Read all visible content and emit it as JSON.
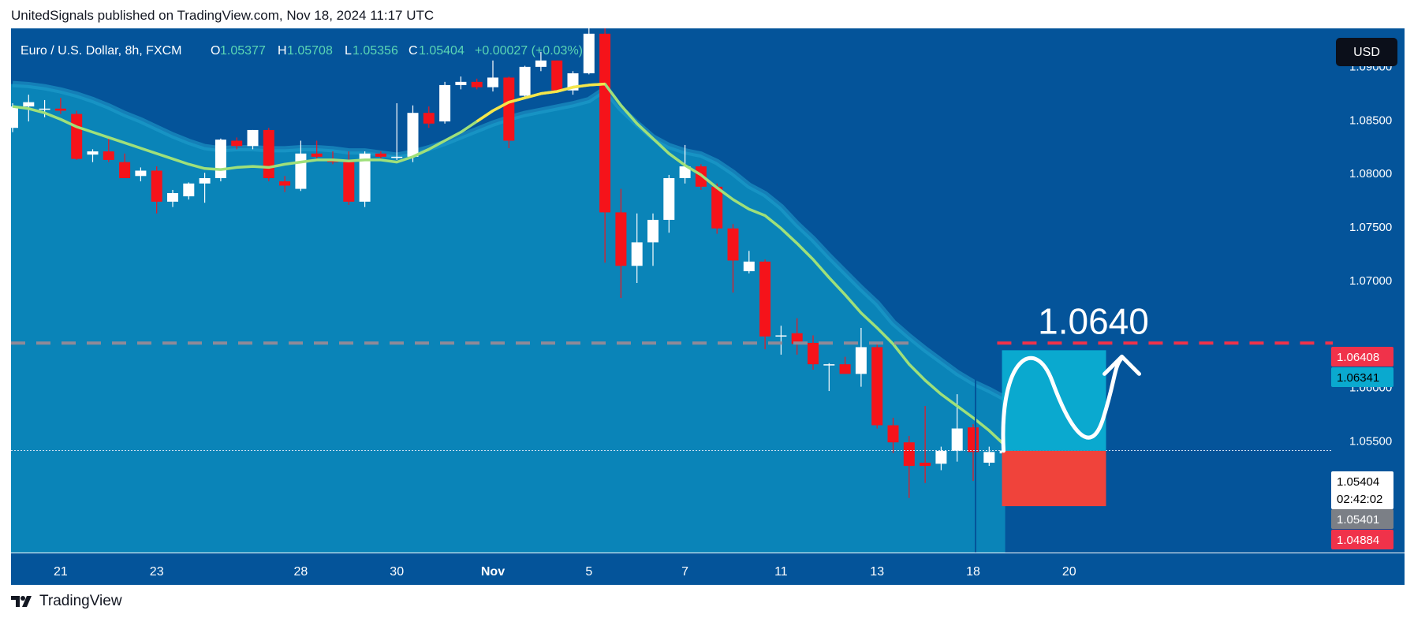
{
  "header": {
    "text": "UnitedSignals published on TradingView.com, Nov 18, 2024 11:17 UTC"
  },
  "legend": {
    "symbol": "Euro / U.S. Dollar, 8h, FXCM",
    "o_label": "O",
    "o": "1.05377",
    "h_label": "H",
    "h": "1.05708",
    "l_label": "L",
    "l": "1.05356",
    "c_label": "C",
    "c": "1.05404",
    "change": "+0.00027 (+0.03%)"
  },
  "currency_button": "USD",
  "footer": {
    "brand": "TradingView"
  },
  "colors": {
    "background": "#04549a",
    "ribbon_fill": "#0a84b8",
    "ribbon_edge": "#1f9ccc",
    "ma_line": "#9fe07a",
    "ma_highlight": "#f6e64a",
    "up_candle": "#ffffff",
    "down_candle": "#f5131a",
    "target_line": "#f0324a",
    "target_zone": "#0aa9cf",
    "stop_zone": "#f0433b",
    "text_on_chart": "#ffffff"
  },
  "annotation": {
    "target_text": "1.0640"
  },
  "price_badges": [
    {
      "text": "1.06408",
      "bg": "#f0324a",
      "fg": "#ffffff",
      "value": 1.06408
    },
    {
      "text": "1.06341",
      "bg": "#0aa9cf",
      "fg": "#000000",
      "value": 1.06341
    },
    {
      "text": "1.05404",
      "bg": "#ffffff",
      "fg": "#000000",
      "value": 1.05404,
      "sub": "02:42:02"
    },
    {
      "text": "1.05401",
      "bg": "#7b7f86",
      "fg": "#ffffff",
      "value": 1.05401
    },
    {
      "text": "1.04884",
      "bg": "#f0324a",
      "fg": "#ffffff",
      "value": 1.04884
    }
  ],
  "chart_data": {
    "type": "candlestick",
    "title": "Euro / U.S. Dollar, 8h, FXCM",
    "y_ticks": [
      "1.09000",
      "1.08500",
      "1.08000",
      "1.07500",
      "1.07000",
      "1.06000",
      "1.05500"
    ],
    "ylim": [
      1.0445,
      1.0935
    ],
    "x_tick_labels": [
      {
        "label": "21",
        "index": 3
      },
      {
        "label": "23",
        "index": 9
      },
      {
        "label": "28",
        "index": 18
      },
      {
        "label": "30",
        "index": 24
      },
      {
        "label": "Nov",
        "index": 30
      },
      {
        "label": "5",
        "index": 36
      },
      {
        "label": "7",
        "index": 42
      },
      {
        "label": "11",
        "index": 48
      },
      {
        "label": "13",
        "index": 54
      },
      {
        "label": "18",
        "index": 60
      },
      {
        "label": "20",
        "index": 66
      }
    ],
    "x_count": 72,
    "last_index": 60,
    "candles": [
      {
        "o": 1.0842,
        "h": 1.0865,
        "l": 1.0838,
        "c": 1.0862
      },
      {
        "o": 1.0862,
        "h": 1.0873,
        "l": 1.0848,
        "c": 1.0866
      },
      {
        "o": 1.086,
        "h": 1.0868,
        "l": 1.0852,
        "c": 1.086
      },
      {
        "o": 1.086,
        "h": 1.087,
        "l": 1.0855,
        "c": 1.0858
      },
      {
        "o": 1.0855,
        "h": 1.0858,
        "l": 1.0812,
        "c": 1.0813
      },
      {
        "o": 1.0817,
        "h": 1.0822,
        "l": 1.081,
        "c": 1.082
      },
      {
        "o": 1.082,
        "h": 1.0832,
        "l": 1.081,
        "c": 1.0812
      },
      {
        "o": 1.081,
        "h": 1.0818,
        "l": 1.0795,
        "c": 1.0795
      },
      {
        "o": 1.0797,
        "h": 1.0805,
        "l": 1.0792,
        "c": 1.0802
      },
      {
        "o": 1.0802,
        "h": 1.0806,
        "l": 1.0762,
        "c": 1.0773
      },
      {
        "o": 1.0773,
        "h": 1.0784,
        "l": 1.0768,
        "c": 1.0781
      },
      {
        "o": 1.0778,
        "h": 1.0791,
        "l": 1.0775,
        "c": 1.079
      },
      {
        "o": 1.079,
        "h": 1.08,
        "l": 1.0772,
        "c": 1.0795
      },
      {
        "o": 1.0795,
        "h": 1.0832,
        "l": 1.0792,
        "c": 1.0831
      },
      {
        "o": 1.083,
        "h": 1.0833,
        "l": 1.0822,
        "c": 1.0825
      },
      {
        "o": 1.0825,
        "h": 1.084,
        "l": 1.0822,
        "c": 1.084
      },
      {
        "o": 1.084,
        "h": 1.0842,
        "l": 1.0792,
        "c": 1.0795
      },
      {
        "o": 1.0792,
        "h": 1.0797,
        "l": 1.0782,
        "c": 1.0788
      },
      {
        "o": 1.0785,
        "h": 1.083,
        "l": 1.0783,
        "c": 1.0818
      },
      {
        "o": 1.0818,
        "h": 1.083,
        "l": 1.0812,
        "c": 1.0815
      },
      {
        "o": 1.0812,
        "h": 1.082,
        "l": 1.0808,
        "c": 1.081
      },
      {
        "o": 1.081,
        "h": 1.082,
        "l": 1.077,
        "c": 1.0773
      },
      {
        "o": 1.0773,
        "h": 1.082,
        "l": 1.0768,
        "c": 1.0818
      },
      {
        "o": 1.0818,
        "h": 1.082,
        "l": 1.0812,
        "c": 1.0815
      },
      {
        "o": 1.0815,
        "h": 1.0865,
        "l": 1.0812,
        "c": 1.0815
      },
      {
        "o": 1.0815,
        "h": 1.0863,
        "l": 1.081,
        "c": 1.0856
      },
      {
        "o": 1.0856,
        "h": 1.0862,
        "l": 1.0842,
        "c": 1.0846
      },
      {
        "o": 1.0848,
        "h": 1.0885,
        "l": 1.0846,
        "c": 1.0882
      },
      {
        "o": 1.0882,
        "h": 1.089,
        "l": 1.0878,
        "c": 1.0885
      },
      {
        "o": 1.0885,
        "h": 1.0888,
        "l": 1.0878,
        "c": 1.088
      },
      {
        "o": 1.088,
        "h": 1.0905,
        "l": 1.0876,
        "c": 1.0889
      },
      {
        "o": 1.0889,
        "h": 1.089,
        "l": 1.0823,
        "c": 1.083
      },
      {
        "o": 1.0872,
        "h": 1.09,
        "l": 1.087,
        "c": 1.0899
      },
      {
        "o": 1.0899,
        "h": 1.0913,
        "l": 1.0895,
        "c": 1.0905
      },
      {
        "o": 1.0905,
        "h": 1.0905,
        "l": 1.0875,
        "c": 1.0877
      },
      {
        "o": 1.0877,
        "h": 1.0895,
        "l": 1.0873,
        "c": 1.0893
      },
      {
        "o": 1.0893,
        "h": 1.0935,
        "l": 1.0892,
        "c": 1.093
      },
      {
        "o": 1.093,
        "h": 1.0935,
        "l": 1.0716,
        "c": 1.0763
      },
      {
        "o": 1.0763,
        "h": 1.0785,
        "l": 1.0683,
        "c": 1.0713
      },
      {
        "o": 1.0713,
        "h": 1.0762,
        "l": 1.0697,
        "c": 1.0735
      },
      {
        "o": 1.0735,
        "h": 1.0762,
        "l": 1.0713,
        "c": 1.0756
      },
      {
        "o": 1.0756,
        "h": 1.0798,
        "l": 1.0744,
        "c": 1.0795
      },
      {
        "o": 1.0795,
        "h": 1.0826,
        "l": 1.079,
        "c": 1.0806
      },
      {
        "o": 1.0806,
        "h": 1.0808,
        "l": 1.0784,
        "c": 1.0787
      },
      {
        "o": 1.0787,
        "h": 1.079,
        "l": 1.0743,
        "c": 1.0748
      },
      {
        "o": 1.0748,
        "h": 1.0752,
        "l": 1.0688,
        "c": 1.0718
      },
      {
        "o": 1.0708,
        "h": 1.0727,
        "l": 1.0706,
        "c": 1.0717
      },
      {
        "o": 1.0717,
        "h": 1.0719,
        "l": 1.0635,
        "c": 1.0647
      },
      {
        "o": 1.0647,
        "h": 1.0657,
        "l": 1.063,
        "c": 1.0648
      },
      {
        "o": 1.065,
        "h": 1.0664,
        "l": 1.063,
        "c": 1.064
      },
      {
        "o": 1.0641,
        "h": 1.0648,
        "l": 1.0616,
        "c": 1.0621
      },
      {
        "o": 1.0621,
        "h": 1.0622,
        "l": 1.0596,
        "c": 1.0621
      },
      {
        "o": 1.0621,
        "h": 1.0628,
        "l": 1.0612,
        "c": 1.0612
      },
      {
        "o": 1.0612,
        "h": 1.0655,
        "l": 1.06,
        "c": 1.0637
      },
      {
        "o": 1.0637,
        "h": 1.064,
        "l": 1.0561,
        "c": 1.0564
      },
      {
        "o": 1.0564,
        "h": 1.0571,
        "l": 1.0538,
        "c": 1.0548
      },
      {
        "o": 1.0548,
        "h": 1.0554,
        "l": 1.0496,
        "c": 1.0526
      },
      {
        "o": 1.0529,
        "h": 1.0582,
        "l": 1.051,
        "c": 1.0526
      },
      {
        "o": 1.0528,
        "h": 1.0544,
        "l": 1.0522,
        "c": 1.054
      },
      {
        "o": 1.054,
        "h": 1.0593,
        "l": 1.053,
        "c": 1.0561
      },
      {
        "o": 1.0562,
        "h": 1.0565,
        "l": 1.0512,
        "c": 1.0539
      },
      {
        "o": 1.0529,
        "h": 1.0544,
        "l": 1.0526,
        "c": 1.0539
      },
      {
        "o": 1.05377,
        "h": 1.05708,
        "l": 1.05356,
        "c": 1.05404
      }
    ],
    "moving_average": [
      1.0862,
      1.086,
      1.0856,
      1.085,
      1.0843,
      1.0838,
      1.0833,
      1.0828,
      1.0823,
      1.0818,
      1.0813,
      1.0808,
      1.0804,
      1.0803,
      1.0805,
      1.0806,
      1.0805,
      1.0808,
      1.081,
      1.0812,
      1.0812,
      1.0811,
      1.0812,
      1.0812,
      1.081,
      1.0815,
      1.0822,
      1.083,
      1.0838,
      1.0848,
      1.0858,
      1.0866,
      1.087,
      1.0874,
      1.0876,
      1.088,
      1.0882,
      1.0883,
      1.0863,
      1.0846,
      1.0832,
      1.0818,
      1.0807,
      1.0798,
      1.0786,
      1.0775,
      1.0766,
      1.076,
      1.0748,
      1.0734,
      1.0719,
      1.0702,
      1.0686,
      1.0669,
      1.0655,
      1.064,
      1.0621,
      1.0606,
      1.0593,
      1.0582,
      1.0571,
      1.0559,
      1.0545
    ],
    "ma_highlight_range": [
      29,
      37
    ],
    "ribbon_upper": [
      1.0883,
      1.0882,
      1.088,
      1.0877,
      1.0873,
      1.0868,
      1.0862,
      1.0855,
      1.0849,
      1.0842,
      1.0835,
      1.0829,
      1.0824,
      1.0822,
      1.0823,
      1.0823,
      1.0822,
      1.0822,
      1.0823,
      1.0823,
      1.0822,
      1.082,
      1.082,
      1.0818,
      1.0816,
      1.0819,
      1.0823,
      1.0828,
      1.0834,
      1.084,
      1.0846,
      1.0851,
      1.0855,
      1.0858,
      1.0861,
      1.0864,
      1.0868,
      1.0878,
      1.086,
      1.0846,
      1.0833,
      1.0825,
      1.082,
      1.0817,
      1.081,
      1.08,
      1.0788,
      1.078,
      1.0768,
      1.0752,
      1.0738,
      1.0722,
      1.0707,
      1.0692,
      1.0678,
      1.066,
      1.0647,
      1.0635,
      1.0624,
      1.0613,
      1.0604,
      1.0597,
      1.0589
    ],
    "ribbon_lower_flat": 1.0445,
    "target_price": 1.06408,
    "entry_price": 1.05401,
    "stop_price": 1.04884,
    "last_price": 1.05404,
    "target_zone_top": 1.06341,
    "projection_start_index": 61.8,
    "projection_end_index": 68.3
  }
}
